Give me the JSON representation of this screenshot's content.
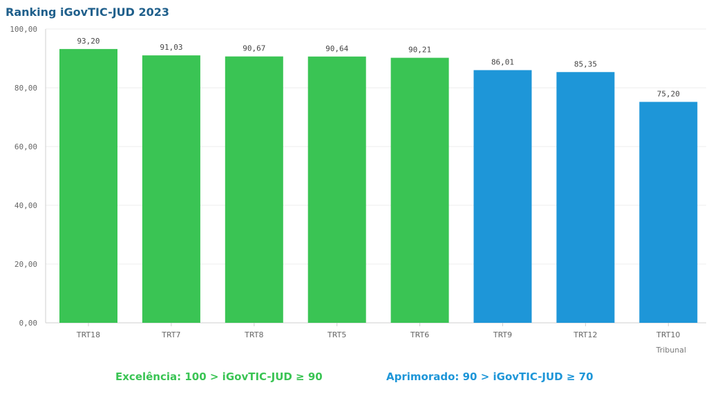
{
  "title": "Ranking iGovTIC-JUD 2023",
  "colors": {
    "excelencia": "#3ac454",
    "aprimorado": "#1e96d8",
    "title": "#1f5f8b"
  },
  "legend": {
    "excelencia": "Excelência: 100 > iGovTIC-JUD ≥ 90",
    "aprimorado": "Aprimorado: 90 > iGovTIC-JUD ≥ 70"
  },
  "chart_data": {
    "type": "bar",
    "title": "Ranking iGovTIC-JUD 2023",
    "xlabel": "Tribunal",
    "ylabel": "",
    "ylim": [
      0,
      100
    ],
    "yticks": [
      "0,00",
      "20,00",
      "40,00",
      "60,00",
      "80,00",
      "100,00"
    ],
    "categories": [
      "TRT18",
      "TRT7",
      "TRT8",
      "TRT5",
      "TRT6",
      "TRT9",
      "TRT12",
      "TRT10"
    ],
    "values": [
      93.2,
      91.03,
      90.67,
      90.64,
      90.21,
      86.01,
      85.35,
      75.2
    ],
    "value_labels": [
      "93,20",
      "91,03",
      "90,67",
      "90,64",
      "90,21",
      "86,01",
      "85,35",
      "75,20"
    ],
    "bar_colors": [
      "#3ac454",
      "#3ac454",
      "#3ac454",
      "#3ac454",
      "#3ac454",
      "#1e96d8",
      "#1e96d8",
      "#1e96d8"
    ],
    "grid": true
  }
}
